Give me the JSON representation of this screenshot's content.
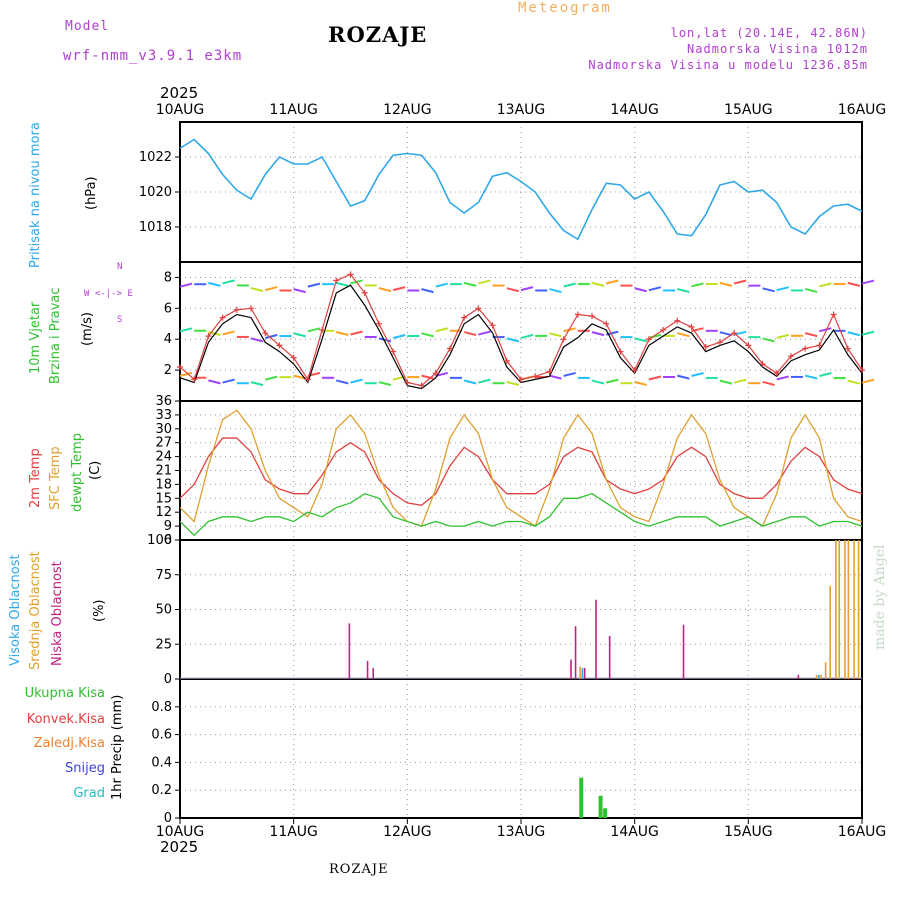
{
  "header": {
    "model_label": "Model",
    "model_name": "wrf-nmm_v3.9.1 e3km",
    "station": "ROZAJE",
    "meteogram_label": "Meteogram",
    "lonlat": "lon,lat (20.14E, 42.86N)",
    "elevation": "Nadmorska Visina 1012m",
    "model_elevation": "Nadmorska Visina u modelu 1236.85m",
    "year": "2025",
    "footer_station": "ROZAJE",
    "watermark": "made by Angel"
  },
  "colors": {
    "pressure": "#30a8e8",
    "wind_label": "#30c030",
    "temp2m": "#e04040",
    "sfc": "#e0a030",
    "dewpt": "#30c030",
    "high_cloud": "#30a8e8",
    "mid_cloud": "#e0a030",
    "low_cloud": "#c02080",
    "total_precip": "#30c030",
    "conv_precip": "#e04040",
    "frozen_precip": "#f08030",
    "snow": "#4040e0",
    "hail": "#20c0c0"
  },
  "chart_data": [
    {
      "type": "line",
      "id": "pressure",
      "ylabel_main": "Pritisak na nivou mora",
      "ylabel_unit": "(hPa)",
      "x_range_days": [
        0,
        6
      ],
      "x_tick_labels": [
        "10AUG",
        "11AUG",
        "12AUG",
        "13AUG",
        "14AUG",
        "15AUG",
        "16AUG"
      ],
      "ylim": [
        1016,
        1024
      ],
      "yticks": [
        1018,
        1020,
        1022
      ],
      "x": [
        0,
        0.125,
        0.25,
        0.375,
        0.5,
        0.625,
        0.75,
        0.875,
        1,
        1.125,
        1.25,
        1.375,
        1.5,
        1.625,
        1.75,
        1.875,
        2,
        2.125,
        2.25,
        2.375,
        2.5,
        2.625,
        2.75,
        2.875,
        3,
        3.125,
        3.25,
        3.375,
        3.5,
        3.625,
        3.75,
        3.875,
        4,
        4.125,
        4.25,
        4.375,
        4.5,
        4.625,
        4.75,
        4.875,
        5,
        5.125,
        5.25,
        5.375,
        5.5,
        5.625,
        5.75,
        5.875,
        6
      ],
      "values": [
        1022.5,
        1023.0,
        1022.2,
        1021.0,
        1020.1,
        1019.6,
        1021.0,
        1022.0,
        1021.6,
        1021.6,
        1022.0,
        1020.6,
        1019.2,
        1019.5,
        1021.0,
        1022.1,
        1022.2,
        1022.1,
        1021.1,
        1019.4,
        1018.8,
        1019.4,
        1020.9,
        1021.1,
        1020.6,
        1020.0,
        1018.8,
        1017.8,
        1017.3,
        1019.0,
        1020.5,
        1020.4,
        1019.6,
        1020.0,
        1018.9,
        1017.6,
        1017.5,
        1018.7,
        1020.4,
        1020.6,
        1020.0,
        1020.1,
        1019.4,
        1018.0,
        1017.6,
        1018.6,
        1019.2,
        1019.3,
        1018.9
      ]
    },
    {
      "type": "line",
      "id": "wind",
      "ylabel_main": "10m Vjetar",
      "ylabel_second": "Brzina i Pravac",
      "ylabel_unit": "(m/s)",
      "compass": "W <-|-> E",
      "compass_ns": "N",
      "compass_s": "S",
      "ylim": [
        0,
        9
      ],
      "yticks": [
        2,
        4,
        6,
        8
      ],
      "x": [
        0,
        0.125,
        0.25,
        0.375,
        0.5,
        0.625,
        0.75,
        0.875,
        1,
        1.125,
        1.25,
        1.375,
        1.5,
        1.625,
        1.75,
        1.875,
        2,
        2.125,
        2.25,
        2.375,
        2.5,
        2.625,
        2.75,
        2.875,
        3,
        3.125,
        3.25,
        3.375,
        3.5,
        3.625,
        3.75,
        3.875,
        4,
        4.125,
        4.25,
        4.375,
        4.5,
        4.625,
        4.75,
        4.875,
        5,
        5.125,
        5.25,
        5.375,
        5.5,
        5.625,
        5.75,
        5.875,
        6
      ],
      "series": [
        {
          "name": "mean",
          "values": [
            1.5,
            1.2,
            3.8,
            5.0,
            5.6,
            5.4,
            3.8,
            3.2,
            2.4,
            1.2,
            4.0,
            7.0,
            7.5,
            6.2,
            4.6,
            2.8,
            1.0,
            0.8,
            1.5,
            3.0,
            5.0,
            5.6,
            4.4,
            2.2,
            1.2,
            1.4,
            1.6,
            3.5,
            4.1,
            5.0,
            4.6,
            2.8,
            1.8,
            3.6,
            4.2,
            4.8,
            4.4,
            3.2,
            3.6,
            3.9,
            3.2,
            2.2,
            1.6,
            2.6,
            3.0,
            3.3,
            4.6,
            3.0,
            1.8
          ]
        },
        {
          "name": "gust",
          "values": [
            2.2,
            1.4,
            4.2,
            5.4,
            5.9,
            6.0,
            4.4,
            3.6,
            2.8,
            1.4,
            4.6,
            7.8,
            8.2,
            7.0,
            5.0,
            3.2,
            1.2,
            1.0,
            1.8,
            3.4,
            5.4,
            6.0,
            4.9,
            2.6,
            1.4,
            1.6,
            1.9,
            4.0,
            5.6,
            5.5,
            5.0,
            3.2,
            2.0,
            4.0,
            4.6,
            5.2,
            4.8,
            3.5,
            3.8,
            4.4,
            3.6,
            2.4,
            1.8,
            2.9,
            3.4,
            3.6,
            5.6,
            3.4,
            2.0
          ]
        }
      ]
    },
    {
      "type": "line",
      "id": "temperature",
      "ylabel_t2m": "2m Temp",
      "ylabel_sfc": "SFC Temp",
      "ylabel_dew": "dewpt Temp",
      "ylabel_unit": "(C)",
      "ylim": [
        6,
        36
      ],
      "yticks": [
        6,
        9,
        12,
        15,
        18,
        21,
        24,
        27,
        30,
        33,
        36
      ],
      "x": [
        0,
        0.125,
        0.25,
        0.375,
        0.5,
        0.625,
        0.75,
        0.875,
        1,
        1.125,
        1.25,
        1.375,
        1.5,
        1.625,
        1.75,
        1.875,
        2,
        2.125,
        2.25,
        2.375,
        2.5,
        2.625,
        2.75,
        2.875,
        3,
        3.125,
        3.25,
        3.375,
        3.5,
        3.625,
        3.75,
        3.875,
        4,
        4.125,
        4.25,
        4.375,
        4.5,
        4.625,
        4.75,
        4.875,
        5,
        5.125,
        5.25,
        5.375,
        5.5,
        5.625,
        5.75,
        5.875,
        6
      ],
      "series": [
        {
          "name": "2m Temp",
          "values": [
            15,
            18,
            24,
            28,
            28,
            25,
            19,
            17,
            16,
            16,
            20,
            25,
            27,
            25,
            19,
            16,
            14,
            13.5,
            16,
            22,
            26,
            24,
            19,
            16,
            16,
            16,
            18,
            24,
            26,
            25,
            19,
            17,
            16,
            17,
            19,
            24,
            26,
            24,
            18,
            16,
            15,
            15,
            18,
            23,
            26,
            24,
            19,
            17,
            16
          ]
        },
        {
          "name": "SFC Temp",
          "values": [
            13,
            10,
            22,
            32,
            34,
            30,
            21,
            15,
            13,
            11,
            18,
            30,
            33,
            29,
            20,
            13,
            10,
            9,
            17,
            28,
            33,
            29,
            19,
            13,
            11,
            9,
            17,
            28,
            33,
            29,
            19,
            13,
            11,
            10,
            18,
            28,
            33,
            29,
            19,
            13,
            11,
            9,
            16,
            28,
            33,
            28,
            15,
            11,
            10
          ]
        },
        {
          "name": "dewpt Temp",
          "values": [
            10,
            7,
            10,
            11,
            11,
            10,
            11,
            11,
            10,
            12,
            11,
            13,
            14,
            16,
            15,
            11,
            10,
            9,
            10,
            9,
            9,
            10,
            9,
            10,
            10,
            9,
            11,
            15,
            15,
            16,
            14,
            12,
            10,
            9,
            10,
            11,
            11,
            11,
            9,
            10,
            11,
            9,
            10,
            11,
            11,
            9,
            10,
            10,
            9
          ]
        }
      ]
    },
    {
      "type": "bar",
      "id": "cloud",
      "ylabel_high": "Visoka Oblacnost",
      "ylabel_mid": "Srednja Oblacnost",
      "ylabel_low": "Niska Oblacnost",
      "ylabel_unit": "(%)",
      "ylim": [
        0,
        100
      ],
      "yticks": [
        0,
        25,
        50,
        75,
        100
      ],
      "series": [
        {
          "name": "Niska Oblacnost",
          "x": [
            1.49,
            1.65,
            1.7,
            3.44,
            3.48,
            3.56,
            3.66,
            3.78,
            4.43,
            5.44
          ],
          "values": [
            40,
            13,
            8,
            14,
            38,
            8,
            57,
            31,
            39,
            3
          ]
        },
        {
          "name": "Srednja Oblacnost",
          "x": [
            3.52,
            5.6,
            5.64,
            5.68,
            5.72,
            5.77,
            5.8,
            5.85,
            5.88,
            5.93,
            5.97
          ],
          "values": [
            9,
            3,
            3,
            12,
            67,
            100,
            100,
            100,
            100,
            100,
            100
          ]
        },
        {
          "name": "Visoka Oblacnost",
          "x": [
            3.54,
            5.62
          ],
          "values": [
            8,
            3
          ]
        }
      ]
    },
    {
      "type": "bar",
      "id": "precip",
      "ylabel_unit": "1hr Precip (mm)",
      "legend": [
        "Ukupna Kisa",
        "Konvek.Kisa",
        "Zaledj.Kisa",
        "Snijeg",
        "Grad"
      ],
      "ylim": [
        0,
        1.0
      ],
      "yticks": [
        0,
        0.2,
        0.4,
        0.6,
        0.8
      ],
      "series": [
        {
          "name": "Ukupna Kisa",
          "x": [
            3.53,
            3.7,
            3.74
          ],
          "values": [
            0.29,
            0.16,
            0.07
          ]
        }
      ]
    }
  ]
}
